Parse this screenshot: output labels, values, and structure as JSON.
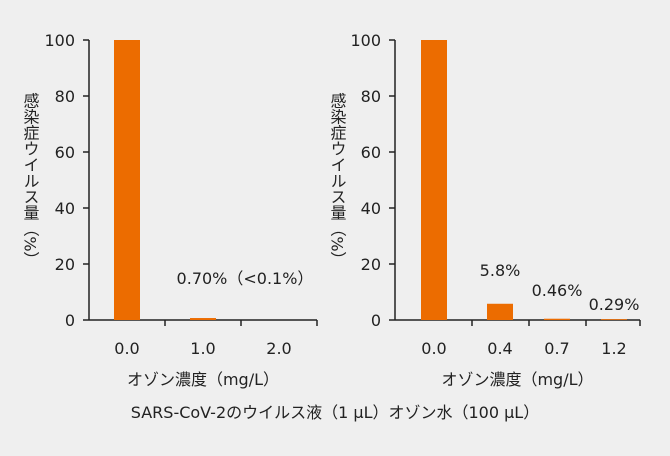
{
  "caption": "SARS-CoV-2のウイルス液（1 μL）オゾン水（100 μL）",
  "colors": {
    "bar": "#ec6c00",
    "background": "#efefef",
    "axis": "#222222"
  },
  "chart_data": [
    {
      "type": "bar",
      "xlabel": "オゾン濃度（mg/L）",
      "ylabel": "感染症ウイルス量（%）",
      "ylim": [
        0,
        100
      ],
      "yticks": [
        "0",
        "20",
        "40",
        "60",
        "80",
        "100"
      ],
      "categories": [
        "0.0",
        "1.0",
        "2.0"
      ],
      "values": [
        100,
        0.7,
        0
      ],
      "data_labels": [
        "",
        "0.70%（<0.1%）",
        ""
      ]
    },
    {
      "type": "bar",
      "xlabel": "オゾン濃度（mg/L）",
      "ylabel": "感染症ウイルス量（%）",
      "ylim": [
        0,
        100
      ],
      "yticks": [
        "0",
        "20",
        "40",
        "60",
        "80",
        "100"
      ],
      "categories": [
        "0.0",
        "0.4",
        "0.7",
        "1.2"
      ],
      "values": [
        100,
        5.8,
        0.46,
        0.29
      ],
      "data_labels": [
        "",
        "5.8%",
        "0.46%",
        "0.29%"
      ]
    }
  ]
}
